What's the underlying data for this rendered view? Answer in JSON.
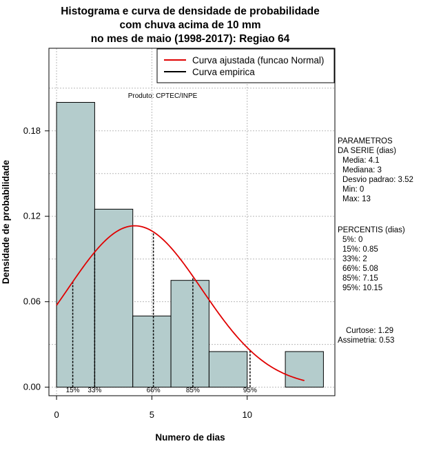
{
  "title_lines": [
    "Histograma e curva de densidade de probabilidade",
    "com chuva acima de 10 mm",
    "no mes de maio (1998-2017): Regiao 64"
  ],
  "source": "Produto: CPTEC/INPE",
  "chart_data": {
    "type": "bar",
    "title": "Histograma e curva de densidade de probabilidade com chuva acima de 10 mm no mes de maio (1998-2017): Regiao 64",
    "xlabel": "Numero de dias",
    "ylabel": "Densidade de probabilidade",
    "xlim": [
      -0.4,
      14.6
    ],
    "ylim": [
      -0.006,
      0.238
    ],
    "x_ticks": [
      0,
      5,
      10
    ],
    "y_ticks": [
      0.0,
      0.06,
      0.12,
      0.18
    ],
    "y_tick_labels": [
      "0.00",
      "0.06",
      "0.12",
      "0.18"
    ],
    "grid": true,
    "bins": [
      {
        "start": 0,
        "end": 2,
        "density": 0.2
      },
      {
        "start": 2,
        "end": 4,
        "density": 0.125
      },
      {
        "start": 4,
        "end": 6,
        "density": 0.05
      },
      {
        "start": 6,
        "end": 8,
        "density": 0.075
      },
      {
        "start": 8,
        "end": 10,
        "density": 0.025
      },
      {
        "start": 10,
        "end": 12,
        "density": 0
      },
      {
        "start": 12,
        "end": 14,
        "density": 0.025
      }
    ],
    "series": [
      {
        "name": "Curva ajustada (funcao Normal)",
        "color": "#e00000",
        "mean": 4.1,
        "sd": 3.52,
        "x_range": [
          0,
          13
        ]
      },
      {
        "name": "Curva empirica",
        "color": "#000000"
      }
    ],
    "percentile_lines": [
      {
        "label": "15%",
        "x": 0.85
      },
      {
        "label": "33%",
        "x": 2
      },
      {
        "label": "66%",
        "x": 5.08
      },
      {
        "label": "85%",
        "x": 7.15
      },
      {
        "label": "95%",
        "x": 10.15
      }
    ],
    "legend_position": "top-right",
    "bar_color": "#b4cccc"
  },
  "parameters": {
    "header": [
      "PARAMETROS",
      "DA SERIE (dias)"
    ],
    "items": [
      "Media: 4.1",
      "Mediana: 3",
      "Desvio padrao: 3.52",
      "Min: 0",
      "Max: 13"
    ]
  },
  "percentiles": {
    "header": "PERCENTIS (dias)",
    "items": [
      "5%: 0",
      "15%: 0.85",
      "33%: 2",
      "66%: 5.08",
      "85%: 7.15",
      "95%: 10.15"
    ]
  },
  "stats": {
    "items": [
      "Curtose: 1.29",
      "Assimetria: 0.53"
    ]
  }
}
